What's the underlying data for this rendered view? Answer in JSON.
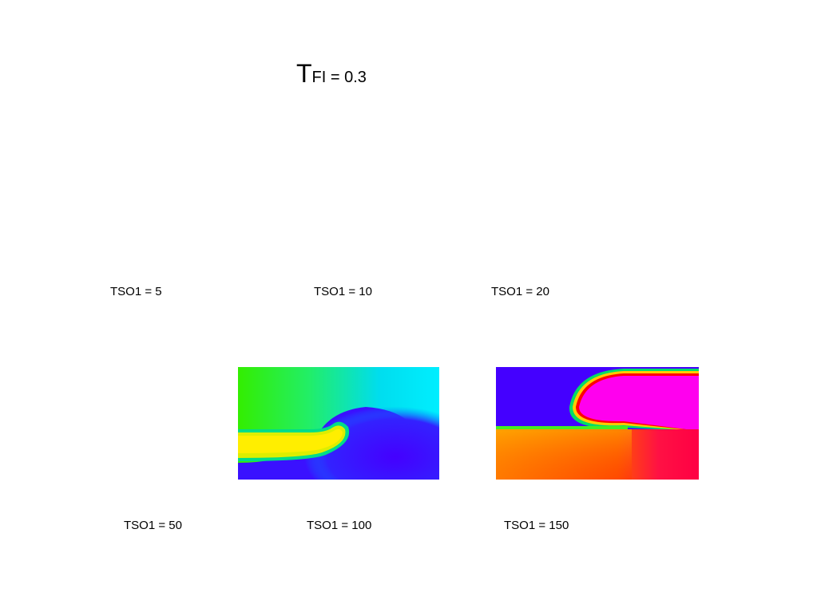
{
  "title": {
    "main": "T",
    "sub": "FI = 0.3"
  },
  "labels": {
    "row1": [
      "TSO1 = 5",
      "TSO1 = 10",
      "TSO1 = 20"
    ],
    "row2": [
      "TSO1 = 50",
      "TSO1 = 100",
      "TSO1 = 150"
    ]
  }
}
